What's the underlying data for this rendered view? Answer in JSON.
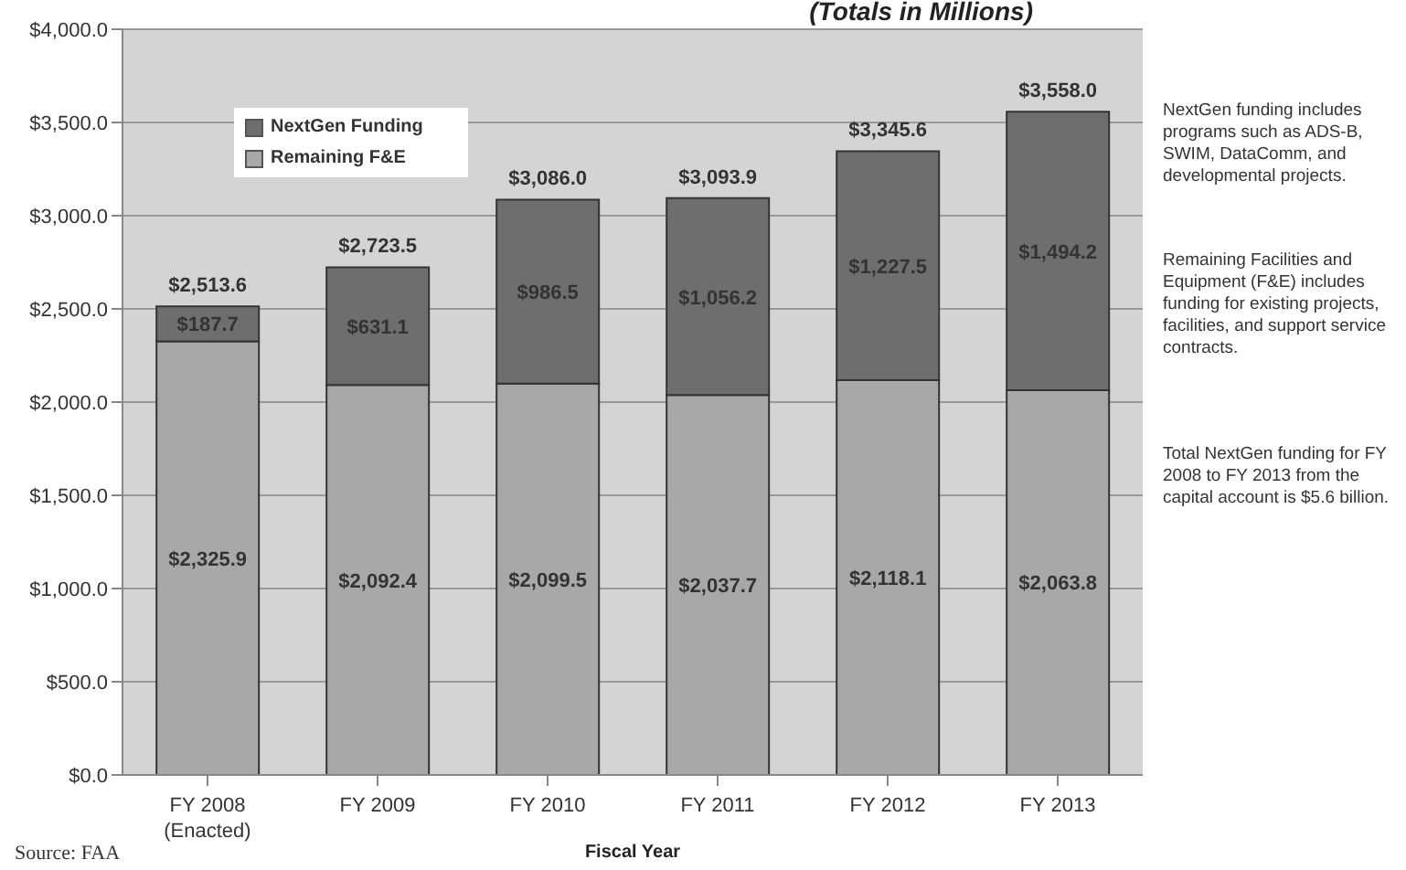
{
  "chart_data": {
    "type": "bar",
    "title": "(Totals in Millions)",
    "xlabel": "Fiscal Year",
    "categories": [
      "FY 2008\n(Enacted)",
      "FY 2009",
      "FY 2010",
      "FY 2011",
      "FY 2012",
      "FY 2013"
    ],
    "stacked": true,
    "series": [
      {
        "name": "Remaining F&E",
        "color": "#a8a8a8",
        "values": [
          2325.9,
          2092.4,
          2099.5,
          2037.7,
          2118.1,
          2063.8
        ],
        "value_labels": [
          "$2,325.9",
          "$2,092.4",
          "$2,099.5",
          "$2,037.7",
          "$2,118.1",
          "$2,063.8"
        ]
      },
      {
        "name": "NextGen Funding",
        "color": "#6e6e6e",
        "values": [
          187.7,
          631.1,
          986.5,
          1056.2,
          1227.5,
          1494.2
        ],
        "value_labels": [
          "$187.7",
          "$631.1",
          "$986.5",
          "$1,056.2",
          "$1,227.5",
          "$1,494.2"
        ]
      }
    ],
    "totals": [
      "$2,513.6",
      "$2,723.5",
      "$3,086.0",
      "$3,093.9",
      "$3,345.6",
      "$3,558.0"
    ],
    "ylim": [
      0,
      4000
    ],
    "yticks": [
      {
        "value": 0,
        "label": "$0.0"
      },
      {
        "value": 500,
        "label": "$500.0"
      },
      {
        "value": 1000,
        "label": "$1,000.0"
      },
      {
        "value": 1500,
        "label": "$1,500.0"
      },
      {
        "value": 2000,
        "label": "$2,000.0"
      },
      {
        "value": 2500,
        "label": "$2,500.0"
      },
      {
        "value": 3000,
        "label": "$3,000.0"
      },
      {
        "value": 3500,
        "label": "$3,500.0"
      },
      {
        "value": 4000,
        "label": "$4,000.0"
      }
    ],
    "grid": "y",
    "legend": "top left",
    "annotations": [
      "NextGen funding includes programs such as ADS-B, SWIM, DataComm, and developmental projects.",
      "Remaining Facilities and Equipment (F&E) includes funding for existing projects, facilities, and support service contracts.",
      "Total NextGen funding for FY 2008 to FY 2013 from the capital account is $5.6 billion.",
      "Source: FAA"
    ]
  }
}
